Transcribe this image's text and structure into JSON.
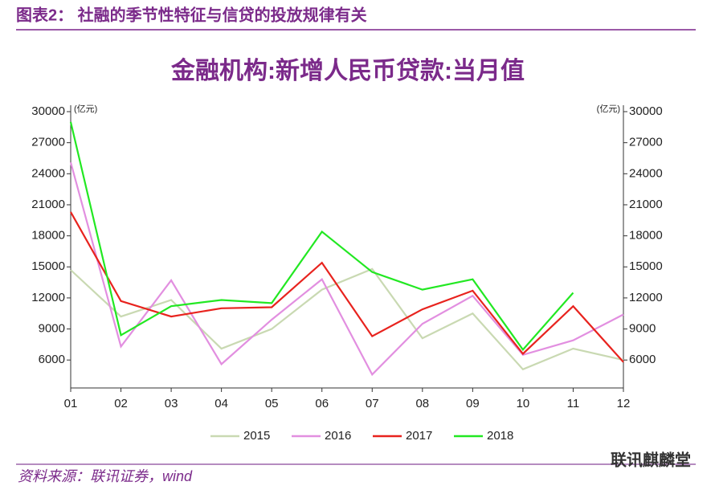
{
  "header": {
    "title": "图表2：  社融的季节性特征与信贷的投放规律有关"
  },
  "chart_data": {
    "type": "line",
    "title": "金融机构:新增人民币贷款:当月值",
    "y_unit": "(亿元)",
    "categories": [
      "01",
      "02",
      "03",
      "04",
      "05",
      "06",
      "07",
      "08",
      "09",
      "10",
      "11",
      "12"
    ],
    "series": [
      {
        "name": "2015",
        "color": "#c9d9b2",
        "values": [
          14700,
          10200,
          11800,
          7100,
          9000,
          12800,
          14800,
          8100,
          10500,
          5100,
          7100,
          6000
        ]
      },
      {
        "name": "2016",
        "color": "#e28fe0",
        "values": [
          25100,
          7300,
          13700,
          5600,
          9900,
          13800,
          4600,
          9500,
          12200,
          6500,
          7900,
          10400
        ]
      },
      {
        "name": "2017",
        "color": "#e8231e",
        "values": [
          20300,
          11700,
          10200,
          11000,
          11100,
          15400,
          8300,
          10900,
          12700,
          6600,
          11200,
          5800
        ]
      },
      {
        "name": "2018",
        "color": "#22e822",
        "values": [
          29000,
          8400,
          11200,
          11800,
          11500,
          18400,
          14500,
          12800,
          13800,
          7000,
          12500,
          null
        ]
      }
    ],
    "ylim": [
      3300,
      30000
    ],
    "yticks": [
      6000,
      9000,
      12000,
      15000,
      18000,
      21000,
      24000,
      27000,
      30000
    ],
    "grid": false,
    "legend": "bottom"
  },
  "footer": {
    "source": "资料来源：联讯证券，wind",
    "watermark": "联讯麒麟堂"
  }
}
